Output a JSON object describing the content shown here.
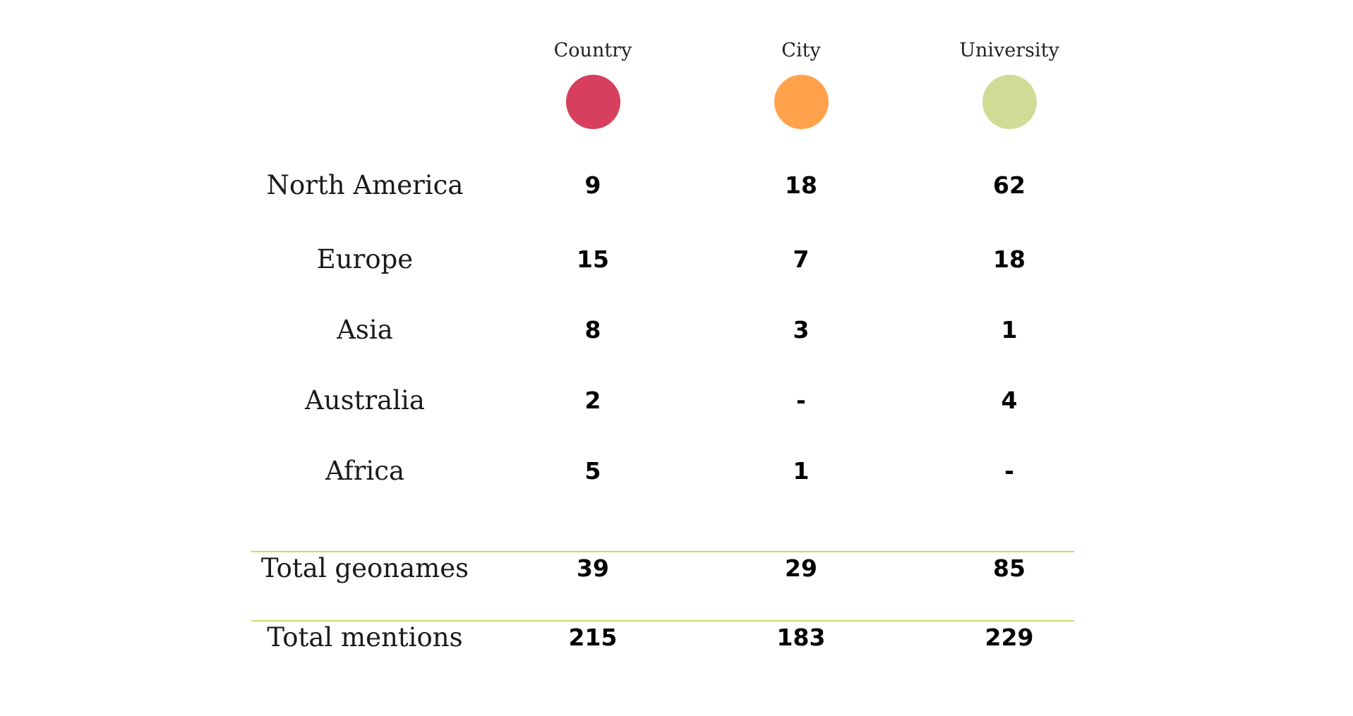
{
  "chart_data": {
    "type": "table",
    "columns": [
      {
        "name": "Country",
        "color": "#d63f5e"
      },
      {
        "name": "City",
        "color": "#ffa24b"
      },
      {
        "name": "University",
        "color": "#d0dc96"
      }
    ],
    "rows": [
      {
        "label": "North America",
        "values": [
          "9",
          "18",
          "62"
        ]
      },
      {
        "label": "Europe",
        "values": [
          "15",
          "7",
          "18"
        ]
      },
      {
        "label": "Asia",
        "values": [
          "8",
          "3",
          "1"
        ]
      },
      {
        "label": "Australia",
        "values": [
          "2",
          "-",
          "4"
        ]
      },
      {
        "label": "Africa",
        "values": [
          "5",
          "1",
          "-"
        ]
      }
    ],
    "totals": [
      {
        "label": "Total geonames",
        "values": [
          "39",
          "29",
          "85"
        ]
      },
      {
        "label": "Total mentions",
        "values": [
          "215",
          "183",
          "229"
        ]
      }
    ],
    "rule_color": "#c5dc72"
  }
}
